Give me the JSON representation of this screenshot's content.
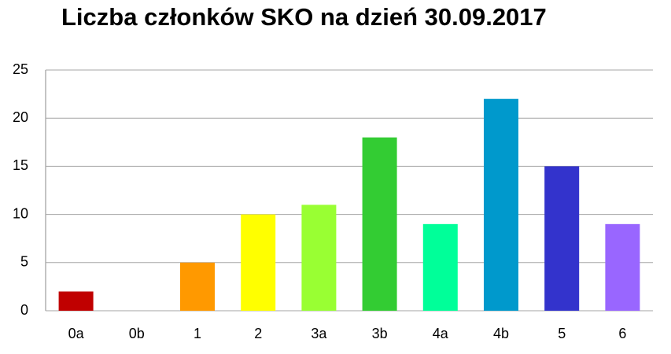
{
  "chart_data": {
    "type": "bar",
    "title": "Liczba członków SKO na dzień 30.09.2017",
    "categories": [
      "0a",
      "0b",
      "1",
      "2",
      "3a",
      "3b",
      "4a",
      "4b",
      "5",
      "6"
    ],
    "values": [
      2,
      0,
      5,
      10,
      11,
      18,
      9,
      22,
      15,
      9
    ],
    "colors": [
      "#c00000",
      null,
      "#ff9900",
      "#ffff00",
      "#99ff33",
      "#33cc33",
      "#00ff99",
      "#0099cc",
      "#3333cc",
      "#9966ff"
    ],
    "ylim": [
      0,
      25
    ],
    "yticks": [
      0,
      5,
      10,
      15,
      20,
      25
    ],
    "grid": true
  }
}
